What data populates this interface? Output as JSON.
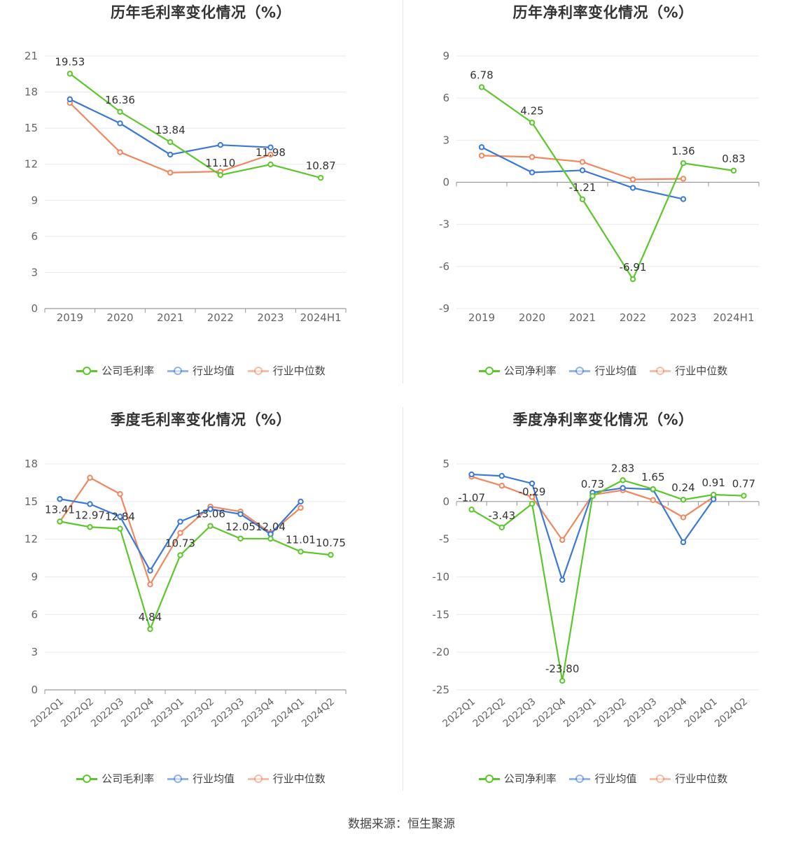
{
  "chart_data": [
    {
      "type": "line",
      "title": "历年毛利率变化情况（%）",
      "categories": [
        "2019",
        "2020",
        "2021",
        "2022",
        "2023",
        "2024H1"
      ],
      "ylim": [
        0,
        21
      ],
      "yticks": [
        0,
        3,
        6,
        9,
        12,
        15,
        18,
        21
      ],
      "grid": true,
      "legend_position": "bottom",
      "series": [
        {
          "name": "公司毛利率",
          "color": "#5bc72b",
          "values": [
            19.53,
            16.36,
            13.84,
            11.1,
            11.98,
            10.87
          ],
          "labels": [
            "19.53",
            "16.36",
            "13.84",
            "11.10",
            "11.98",
            "10.87"
          ]
        },
        {
          "name": "行业均值",
          "color": "#3a78d8",
          "values": [
            17.4,
            15.4,
            12.8,
            13.6,
            13.4,
            null
          ]
        },
        {
          "name": "行业中位数",
          "color": "#f0875e",
          "values": [
            17.1,
            13.0,
            11.3,
            11.4,
            12.8,
            null
          ]
        }
      ]
    },
    {
      "type": "line",
      "title": "历年净利率变化情况（%）",
      "categories": [
        "2019",
        "2020",
        "2021",
        "2022",
        "2023",
        "2024H1"
      ],
      "ylim": [
        -9,
        9
      ],
      "yticks": [
        -9,
        -6,
        -3,
        0,
        3,
        6,
        9
      ],
      "grid": true,
      "legend_position": "bottom",
      "series": [
        {
          "name": "公司净利率",
          "color": "#5bc72b",
          "values": [
            6.78,
            4.25,
            -1.21,
            -6.91,
            1.36,
            0.83
          ],
          "labels": [
            "6.78",
            "4.25",
            "-1.21",
            "-6.91",
            "1.36",
            "0.83"
          ]
        },
        {
          "name": "行业均值",
          "color": "#3a78d8",
          "values": [
            2.5,
            0.7,
            0.85,
            -0.4,
            -1.2,
            null
          ]
        },
        {
          "name": "行业中位数",
          "color": "#f0875e",
          "values": [
            1.9,
            1.8,
            1.45,
            0.2,
            0.25,
            null
          ]
        }
      ]
    },
    {
      "type": "line",
      "title": "季度毛利率变化情况（%）",
      "categories": [
        "2022Q1",
        "2022Q2",
        "2022Q3",
        "2022Q4",
        "2023Q1",
        "2023Q2",
        "2023Q3",
        "2023Q4",
        "2024Q1",
        "2024Q2"
      ],
      "ylim": [
        0,
        18
      ],
      "yticks": [
        0,
        3,
        6,
        9,
        12,
        15,
        18
      ],
      "grid": true,
      "legend_position": "bottom",
      "series": [
        {
          "name": "公司毛利率",
          "color": "#5bc72b",
          "values": [
            13.41,
            12.97,
            12.84,
            4.84,
            10.73,
            13.06,
            12.05,
            12.04,
            11.01,
            10.75
          ],
          "labels": [
            "13.41",
            "12.97",
            "12.84",
            "4.84",
            "10.73",
            "13.06",
            "12.05",
            "12.04",
            "11.01",
            "10.75"
          ]
        },
        {
          "name": "行业均值",
          "color": "#3a78d8",
          "values": [
            15.2,
            14.8,
            13.8,
            9.5,
            13.4,
            14.4,
            14.0,
            12.4,
            15.0,
            null
          ]
        },
        {
          "name": "行业中位数",
          "color": "#f0875e",
          "values": [
            13.4,
            16.9,
            15.6,
            8.4,
            12.5,
            14.6,
            14.2,
            12.5,
            14.5,
            null
          ]
        }
      ]
    },
    {
      "type": "line",
      "title": "季度净利率变化情况（%）",
      "categories": [
        "2022Q1",
        "2022Q2",
        "2022Q3",
        "2022Q4",
        "2023Q1",
        "2023Q2",
        "2023Q3",
        "2023Q4",
        "2024Q1",
        "2024Q2"
      ],
      "ylim": [
        -25,
        5
      ],
      "yticks": [
        -25,
        -20,
        -15,
        -10,
        -5,
        0,
        5
      ],
      "grid": true,
      "legend_position": "bottom",
      "series": [
        {
          "name": "公司净利率",
          "color": "#5bc72b",
          "values": [
            -1.07,
            -3.43,
            -0.29,
            -23.8,
            0.73,
            2.83,
            1.65,
            0.24,
            0.91,
            0.77
          ],
          "labels": [
            "-1.07",
            "-3.43",
            "-0.29",
            "-23.80",
            "0.73",
            "2.83",
            "1.65",
            "0.24",
            "0.91",
            "0.77"
          ]
        },
        {
          "name": "行业均值",
          "color": "#3a78d8",
          "values": [
            3.6,
            3.4,
            2.4,
            -10.4,
            1.2,
            1.8,
            1.6,
            -5.4,
            0.3,
            null
          ]
        },
        {
          "name": "行业中位数",
          "color": "#f0875e",
          "values": [
            3.3,
            2.1,
            0.6,
            -5.1,
            0.9,
            1.5,
            0.2,
            -2.1,
            0.6,
            null
          ]
        }
      ]
    }
  ],
  "source": "数据来源：恒生聚源"
}
